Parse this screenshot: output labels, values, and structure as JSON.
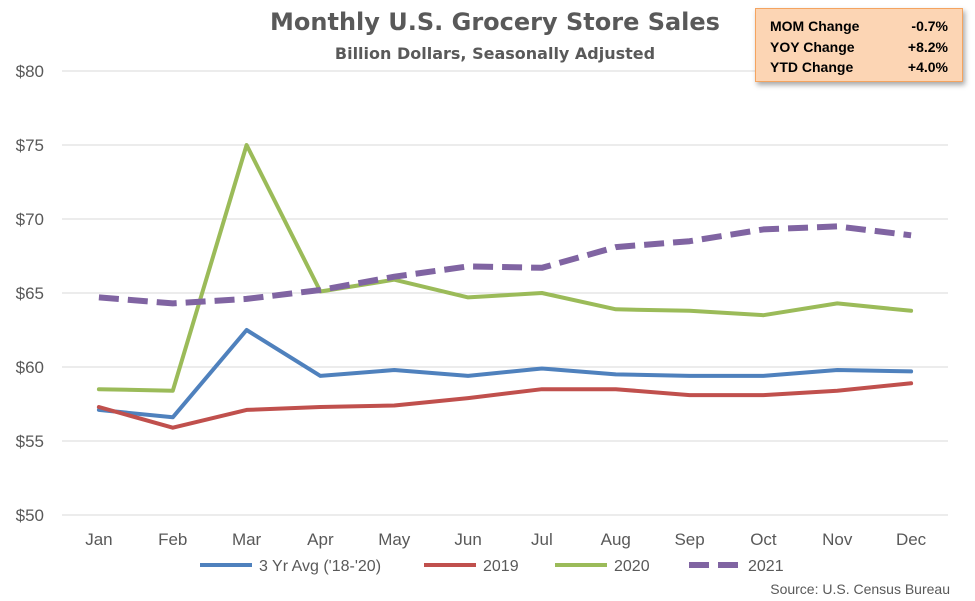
{
  "chart_data": {
    "type": "line",
    "title": "Monthly U.S. Grocery Store Sales",
    "subtitle": "Billion Dollars, Seasonally Adjusted",
    "categories": [
      "Jan",
      "Feb",
      "Mar",
      "Apr",
      "May",
      "Jun",
      "Jul",
      "Aug",
      "Sep",
      "Oct",
      "Nov",
      "Dec"
    ],
    "ylim": [
      50,
      80
    ],
    "ytick_values": [
      50,
      55,
      60,
      65,
      70,
      75,
      80
    ],
    "ytick_labels": [
      "$50",
      "$55",
      "$60",
      "$65",
      "$70",
      "$75",
      "$80"
    ],
    "grid": "horizontal",
    "legend_position": "bottom",
    "series": [
      {
        "name": "3 Yr Avg ('18-'20)",
        "color": "#4f81bd",
        "dashed": false,
        "values": [
          57.1,
          56.6,
          62.5,
          59.4,
          59.8,
          59.4,
          59.9,
          59.5,
          59.4,
          59.4,
          59.8,
          59.7
        ]
      },
      {
        "name": "2019",
        "color": "#c0504d",
        "dashed": false,
        "values": [
          57.3,
          55.9,
          57.1,
          57.3,
          57.4,
          57.9,
          58.5,
          58.5,
          58.1,
          58.1,
          58.4,
          58.9
        ]
      },
      {
        "name": "2020",
        "color": "#9bbb59",
        "dashed": false,
        "values": [
          58.5,
          58.4,
          75.0,
          65.1,
          65.9,
          64.7,
          65.0,
          63.9,
          63.8,
          63.5,
          64.3,
          63.8
        ]
      },
      {
        "name": "2021",
        "color": "#8064a2",
        "dashed": true,
        "values": [
          64.7,
          64.3,
          64.6,
          65.2,
          66.1,
          66.8,
          66.7,
          68.1,
          68.5,
          69.3,
          69.5,
          68.9
        ]
      }
    ],
    "source": "Source: U.S. Census Bureau"
  },
  "stats_box": {
    "rows": [
      {
        "label": "MOM Change",
        "value": "-0.7%"
      },
      {
        "label": "YOY Change",
        "value": "+8.2%"
      },
      {
        "label": "YTD Change",
        "value": "+4.0%"
      }
    ]
  }
}
